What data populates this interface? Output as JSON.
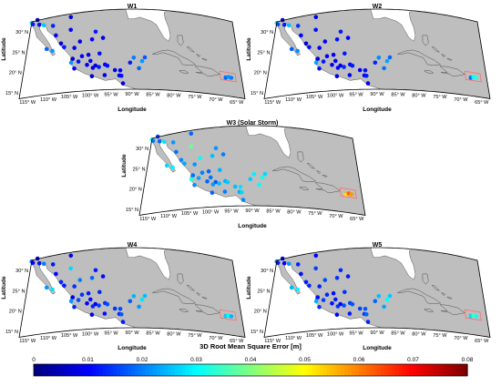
{
  "panels": [
    {
      "title": "W1",
      "points": [
        [
          -117,
          32.2,
          0.028
        ],
        [
          -116.6,
          31.8,
          0.012
        ],
        [
          -115.5,
          32.6,
          0.008
        ],
        [
          -114.8,
          31.3,
          0.011
        ],
        [
          -113.5,
          30.9,
          0.026
        ],
        [
          -111,
          30.3,
          0.013
        ],
        [
          -109.9,
          27.8,
          0.009
        ],
        [
          -108.3,
          25.6,
          0.006
        ],
        [
          -107.4,
          24.6,
          0.012
        ],
        [
          -111.9,
          24.8,
          0.018
        ],
        [
          -110.3,
          24.1,
          0.022
        ],
        [
          -106.1,
          28.6,
          0.01
        ],
        [
          -106.4,
          31.7,
          0.007
        ],
        [
          -104.7,
          24.1,
          0.009
        ],
        [
          -103.4,
          25.5,
          0.008
        ],
        [
          -100.3,
          25.7,
          0.01
        ],
        [
          -99.5,
          27.5,
          0.012
        ],
        [
          -97.5,
          25.9,
          0.009
        ],
        [
          -98.2,
          22.2,
          0.011
        ],
        [
          -101,
          22.1,
          0.008
        ],
        [
          -102.6,
          21.9,
          0.009
        ],
        [
          -103.4,
          20.7,
          0.011
        ],
        [
          -104.9,
          21.5,
          0.007
        ],
        [
          -105.2,
          20.6,
          0.022
        ],
        [
          -104.3,
          19.1,
          0.01
        ],
        [
          -101.2,
          19.7,
          0.008
        ],
        [
          -100.4,
          20.6,
          0.009
        ],
        [
          -99.1,
          19.4,
          0.007
        ],
        [
          -98.2,
          19,
          0.012
        ],
        [
          -99.7,
          18.9,
          0.009
        ],
        [
          -96.7,
          19.5,
          0.01
        ],
        [
          -96.1,
          19.2,
          0.011
        ],
        [
          -96.7,
          17,
          0.008
        ],
        [
          -99.8,
          16.9,
          0.006
        ],
        [
          -93.1,
          16.8,
          0.009
        ],
        [
          -92.6,
          16.7,
          0.011
        ],
        [
          -92.2,
          14.9,
          0.008
        ],
        [
          -94.2,
          18.1,
          0.009
        ],
        [
          -92.9,
          18,
          0.01
        ],
        [
          -90.5,
          19.8,
          0.012
        ],
        [
          -89.6,
          21,
          0.02
        ],
        [
          -88.3,
          18.5,
          0.018
        ],
        [
          -86.8,
          21.1,
          0.017
        ],
        [
          -87.5,
          20.2,
          0.022
        ],
        [
          -67,
          18,
          0.018
        ],
        [
          -66.3,
          18.3,
          0.022
        ],
        [
          -65.6,
          18.2,
          0.02
        ]
      ]
    },
    {
      "title": "W2",
      "points": [
        [
          -117,
          32.2,
          0.028
        ],
        [
          -116.6,
          31.8,
          0.016
        ],
        [
          -115.5,
          32.6,
          0.009
        ],
        [
          -114.8,
          31.3,
          0.012
        ],
        [
          -113.5,
          30.9,
          0.025
        ],
        [
          -111,
          30.3,
          0.014
        ],
        [
          -109.9,
          27.8,
          0.01
        ],
        [
          -108.3,
          25.6,
          0.007
        ],
        [
          -107.4,
          24.6,
          0.011
        ],
        [
          -111.9,
          24.8,
          0.017
        ],
        [
          -110.3,
          24.1,
          0.021
        ],
        [
          -106.1,
          28.6,
          0.011
        ],
        [
          -106.4,
          31.7,
          0.008
        ],
        [
          -104.7,
          24.1,
          0.009
        ],
        [
          -103.4,
          25.5,
          0.01
        ],
        [
          -100.3,
          25.7,
          0.011
        ],
        [
          -99.5,
          27.5,
          0.012
        ],
        [
          -97.5,
          25.9,
          0.01
        ],
        [
          -98.2,
          22.2,
          0.012
        ],
        [
          -101,
          22.1,
          0.009
        ],
        [
          -102.6,
          21.9,
          0.01
        ],
        [
          -103.4,
          20.7,
          0.012
        ],
        [
          -104.9,
          21.5,
          0.008
        ],
        [
          -105.2,
          20.6,
          0.023
        ],
        [
          -104.3,
          19.1,
          0.011
        ],
        [
          -101.2,
          19.7,
          0.009
        ],
        [
          -100.4,
          20.6,
          0.01
        ],
        [
          -99.1,
          19.4,
          0.008
        ],
        [
          -98.2,
          19,
          0.013
        ],
        [
          -99.7,
          18.9,
          0.01
        ],
        [
          -96.7,
          19.5,
          0.011
        ],
        [
          -96.1,
          19.2,
          0.012
        ],
        [
          -96.7,
          17,
          0.009
        ],
        [
          -99.8,
          16.9,
          0.007
        ],
        [
          -93.1,
          16.8,
          0.01
        ],
        [
          -92.6,
          16.7,
          0.012
        ],
        [
          -92.2,
          14.9,
          0.009
        ],
        [
          -94.2,
          18.1,
          0.01
        ],
        [
          -92.9,
          18,
          0.011
        ],
        [
          -90.5,
          19.8,
          0.013
        ],
        [
          -89.6,
          21,
          0.021
        ],
        [
          -88.3,
          18.5,
          0.019
        ],
        [
          -86.8,
          21.1,
          0.018
        ],
        [
          -87.5,
          20.2,
          0.023
        ],
        [
          -67,
          18,
          0.019
        ],
        [
          -66.3,
          18.3,
          0.031
        ],
        [
          -65.6,
          18.2,
          0.033
        ]
      ]
    },
    {
      "title": "W3 (Solar Storm)",
      "points": [
        [
          -117,
          32.2,
          0.033
        ],
        [
          -116.6,
          31.8,
          0.02
        ],
        [
          -115.5,
          32.6,
          0.015
        ],
        [
          -114.8,
          31.3,
          0.018
        ],
        [
          -113.5,
          30.9,
          0.028
        ],
        [
          -111,
          30.3,
          0.022
        ],
        [
          -109.9,
          27.8,
          0.019
        ],
        [
          -108.3,
          25.6,
          0.021
        ],
        [
          -107.4,
          24.6,
          0.023
        ],
        [
          -111.9,
          24.8,
          0.027
        ],
        [
          -110.3,
          24.1,
          0.029
        ],
        [
          -106.1,
          28.6,
          0.038
        ],
        [
          -106.4,
          31.7,
          0.018
        ],
        [
          -104.7,
          24.1,
          0.022
        ],
        [
          -103.4,
          25.5,
          0.03
        ],
        [
          -100.3,
          25.7,
          0.025
        ],
        [
          -99.5,
          27.5,
          0.022
        ],
        [
          -97.5,
          25.9,
          0.02
        ],
        [
          -98.2,
          22.2,
          0.024
        ],
        [
          -101,
          22.1,
          0.018
        ],
        [
          -102.6,
          21.9,
          0.02
        ],
        [
          -103.4,
          20.7,
          0.023
        ],
        [
          -104.9,
          21.5,
          0.019
        ],
        [
          -105.2,
          20.6,
          0.032
        ],
        [
          -104.3,
          19.1,
          0.021
        ],
        [
          -101.2,
          19.7,
          0.018
        ],
        [
          -100.4,
          20.6,
          0.019
        ],
        [
          -99.1,
          19.4,
          0.017
        ],
        [
          -98.2,
          19,
          0.025
        ],
        [
          -99.7,
          18.9,
          0.022
        ],
        [
          -96.7,
          19.5,
          0.024
        ],
        [
          -96.1,
          19.2,
          0.026
        ],
        [
          -96.7,
          17,
          0.02
        ],
        [
          -99.8,
          16.9,
          0.018
        ],
        [
          -93.1,
          16.8,
          0.023
        ],
        [
          -92.6,
          16.7,
          0.027
        ],
        [
          -92.2,
          14.9,
          0.021
        ],
        [
          -94.2,
          18.1,
          0.025
        ],
        [
          -92.9,
          18,
          0.028
        ],
        [
          -90.5,
          19.8,
          0.026
        ],
        [
          -89.6,
          21,
          0.029
        ],
        [
          -88.3,
          18.5,
          0.03
        ],
        [
          -86.8,
          21.1,
          0.027
        ],
        [
          -87.5,
          20.2,
          0.031
        ],
        [
          -67,
          18,
          0.052
        ],
        [
          -66.3,
          18.3,
          0.062
        ],
        [
          -65.6,
          18.2,
          0.058
        ]
      ]
    },
    {
      "title": "W4",
      "points": [
        [
          -117,
          32.2,
          0.018
        ],
        [
          -116.6,
          31.8,
          0.01
        ],
        [
          -115.5,
          32.6,
          0.008
        ],
        [
          -114.8,
          31.3,
          0.011
        ],
        [
          -113.5,
          30.9,
          0.02
        ],
        [
          -111,
          30.3,
          0.012
        ],
        [
          -109.9,
          27.8,
          0.01
        ],
        [
          -108.3,
          25.6,
          0.013
        ],
        [
          -107.4,
          24.6,
          0.012
        ],
        [
          -111.9,
          24.8,
          0.022
        ],
        [
          -110.3,
          24.1,
          0.028
        ],
        [
          -106.1,
          28.6,
          0.027
        ],
        [
          -106.4,
          31.7,
          0.009
        ],
        [
          -104.7,
          24.1,
          0.014
        ],
        [
          -103.4,
          25.5,
          0.02
        ],
        [
          -100.3,
          25.7,
          0.018
        ],
        [
          -99.5,
          27.5,
          0.012
        ],
        [
          -97.5,
          25.9,
          0.011
        ],
        [
          -98.2,
          22.2,
          0.013
        ],
        [
          -101,
          22.1,
          0.012
        ],
        [
          -102.6,
          21.9,
          0.014
        ],
        [
          -103.4,
          20.7,
          0.016
        ],
        [
          -104.9,
          21.5,
          0.01
        ],
        [
          -105.2,
          20.6,
          0.022
        ],
        [
          -104.3,
          19.1,
          0.013
        ],
        [
          -101.2,
          19.7,
          0.01
        ],
        [
          -100.4,
          20.6,
          0.011
        ],
        [
          -99.1,
          19.4,
          0.009
        ],
        [
          -98.2,
          19,
          0.015
        ],
        [
          -99.7,
          18.9,
          0.013
        ],
        [
          -96.7,
          19.5,
          0.014
        ],
        [
          -96.1,
          19.2,
          0.016
        ],
        [
          -96.7,
          17,
          0.011
        ],
        [
          -99.8,
          16.9,
          0.009
        ],
        [
          -93.1,
          16.8,
          0.013
        ],
        [
          -92.6,
          16.7,
          0.017
        ],
        [
          -92.2,
          14.9,
          0.012
        ],
        [
          -94.2,
          18.1,
          0.014
        ],
        [
          -92.9,
          18,
          0.016
        ],
        [
          -90.5,
          19.8,
          0.017
        ],
        [
          -89.6,
          21,
          0.024
        ],
        [
          -88.3,
          18.5,
          0.022
        ],
        [
          -86.8,
          21.1,
          0.025
        ],
        [
          -87.5,
          20.2,
          0.028
        ],
        [
          -67,
          18,
          0.026
        ],
        [
          -66.3,
          18.3,
          0.03
        ],
        [
          -65.6,
          18.2,
          0.024
        ]
      ]
    },
    {
      "title": "W5",
      "points": [
        [
          -117,
          32.2,
          0.02
        ],
        [
          -116.6,
          31.8,
          0.012
        ],
        [
          -115.5,
          32.6,
          0.009
        ],
        [
          -114.8,
          31.3,
          0.01
        ],
        [
          -113.5,
          30.9,
          0.022
        ],
        [
          -111,
          30.3,
          0.013
        ],
        [
          -109.9,
          27.8,
          0.011
        ],
        [
          -108.3,
          25.6,
          0.012
        ],
        [
          -107.4,
          24.6,
          0.013
        ],
        [
          -111.9,
          24.8,
          0.024
        ],
        [
          -110.3,
          24.1,
          0.029
        ],
        [
          -106.1,
          28.6,
          0.015
        ],
        [
          -106.4,
          31.7,
          0.01
        ],
        [
          -104.7,
          24.1,
          0.013
        ],
        [
          -103.4,
          25.5,
          0.016
        ],
        [
          -100.3,
          25.7,
          0.014
        ],
        [
          -99.5,
          27.5,
          0.013
        ],
        [
          -97.5,
          25.9,
          0.012
        ],
        [
          -98.2,
          22.2,
          0.014
        ],
        [
          -101,
          22.1,
          0.011
        ],
        [
          -102.6,
          21.9,
          0.013
        ],
        [
          -103.4,
          20.7,
          0.015
        ],
        [
          -104.9,
          21.5,
          0.011
        ],
        [
          -105.2,
          20.6,
          0.024
        ],
        [
          -104.3,
          19.1,
          0.014
        ],
        [
          -101.2,
          19.7,
          0.011
        ],
        [
          -100.4,
          20.6,
          0.012
        ],
        [
          -99.1,
          19.4,
          0.01
        ],
        [
          -98.2,
          19,
          0.016
        ],
        [
          -99.7,
          18.9,
          0.014
        ],
        [
          -96.7,
          19.5,
          0.015
        ],
        [
          -96.1,
          19.2,
          0.017
        ],
        [
          -96.7,
          17,
          0.012
        ],
        [
          -99.8,
          16.9,
          0.01
        ],
        [
          -93.1,
          16.8,
          0.014
        ],
        [
          -92.6,
          16.7,
          0.018
        ],
        [
          -92.2,
          14.9,
          0.013
        ],
        [
          -94.2,
          18.1,
          0.015
        ],
        [
          -92.9,
          18,
          0.017
        ],
        [
          -90.5,
          19.8,
          0.018
        ],
        [
          -89.6,
          21,
          0.025
        ],
        [
          -88.3,
          18.5,
          0.023
        ],
        [
          -86.8,
          21.1,
          0.026
        ],
        [
          -87.5,
          20.2,
          0.03
        ],
        [
          -67,
          18,
          0.027
        ],
        [
          -66.3,
          18.3,
          0.035
        ],
        [
          -65.6,
          18.2,
          0.031
        ]
      ]
    }
  ],
  "lon_ticks": [
    "115° W",
    "110° W",
    "105° W",
    "100° W",
    "95° W",
    "90° W",
    "85° W",
    "80° W",
    "75° W",
    "70° W",
    "65° W"
  ],
  "lat_ticks": [
    "15° N",
    "20° N",
    "25° N",
    "30° N"
  ],
  "xlabel": "Longitude",
  "ylabel": "Latitude",
  "colorbar": {
    "label": "3D Root Mean Square Error [m]",
    "ticks": [
      "0",
      "0.01",
      "0.02",
      "0.03",
      "0.04",
      "0.05",
      "0.06",
      "0.07",
      "0.08"
    ],
    "range": [
      0,
      0.08
    ]
  },
  "colors": {
    "land": "#bebebe",
    "highlight_box": "#ff6e6e"
  }
}
